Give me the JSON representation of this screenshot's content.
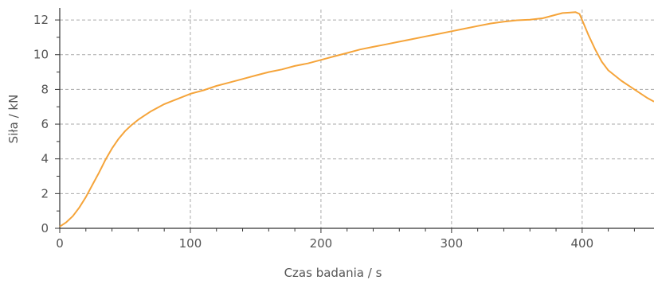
{
  "chart_data": {
    "type": "line",
    "title": "",
    "xlabel": "Czas badania / s",
    "ylabel": "Siła / kN",
    "xlim": [
      0,
      455
    ],
    "ylim": [
      0,
      12.6
    ],
    "xticks": [
      0,
      100,
      200,
      300,
      400
    ],
    "yticks": [
      0,
      2,
      4,
      6,
      8,
      10,
      12
    ],
    "x_minor_step": 20,
    "y_minor_step": 1,
    "grid": true,
    "legend": "none",
    "colors": {
      "line": "#f5a43a",
      "text": "#555555",
      "grid": "#aaaaaa",
      "axis": "#333333"
    },
    "series": [
      {
        "x": [
          0,
          5,
          10,
          15,
          20,
          25,
          30,
          35,
          40,
          45,
          50,
          55,
          60,
          65,
          70,
          80,
          90,
          100,
          110,
          120,
          130,
          140,
          150,
          160,
          170,
          180,
          190,
          200,
          210,
          220,
          230,
          240,
          250,
          260,
          270,
          280,
          290,
          300,
          310,
          320,
          330,
          340,
          350,
          360,
          370,
          380,
          385,
          390,
          395,
          398,
          400,
          405,
          410,
          415,
          420,
          430,
          440,
          450,
          455
        ],
        "y": [
          0.1,
          0.35,
          0.7,
          1.2,
          1.8,
          2.5,
          3.2,
          3.95,
          4.6,
          5.15,
          5.6,
          5.95,
          6.25,
          6.5,
          6.75,
          7.15,
          7.45,
          7.75,
          7.95,
          8.2,
          8.4,
          8.6,
          8.8,
          9.0,
          9.15,
          9.35,
          9.5,
          9.7,
          9.9,
          10.1,
          10.3,
          10.45,
          10.6,
          10.75,
          10.9,
          11.05,
          11.2,
          11.35,
          11.5,
          11.65,
          11.8,
          11.9,
          11.98,
          12.02,
          12.1,
          12.3,
          12.4,
          12.42,
          12.45,
          12.35,
          12.0,
          11.1,
          10.3,
          9.6,
          9.1,
          8.5,
          8.0,
          7.5,
          7.3
        ]
      }
    ]
  }
}
